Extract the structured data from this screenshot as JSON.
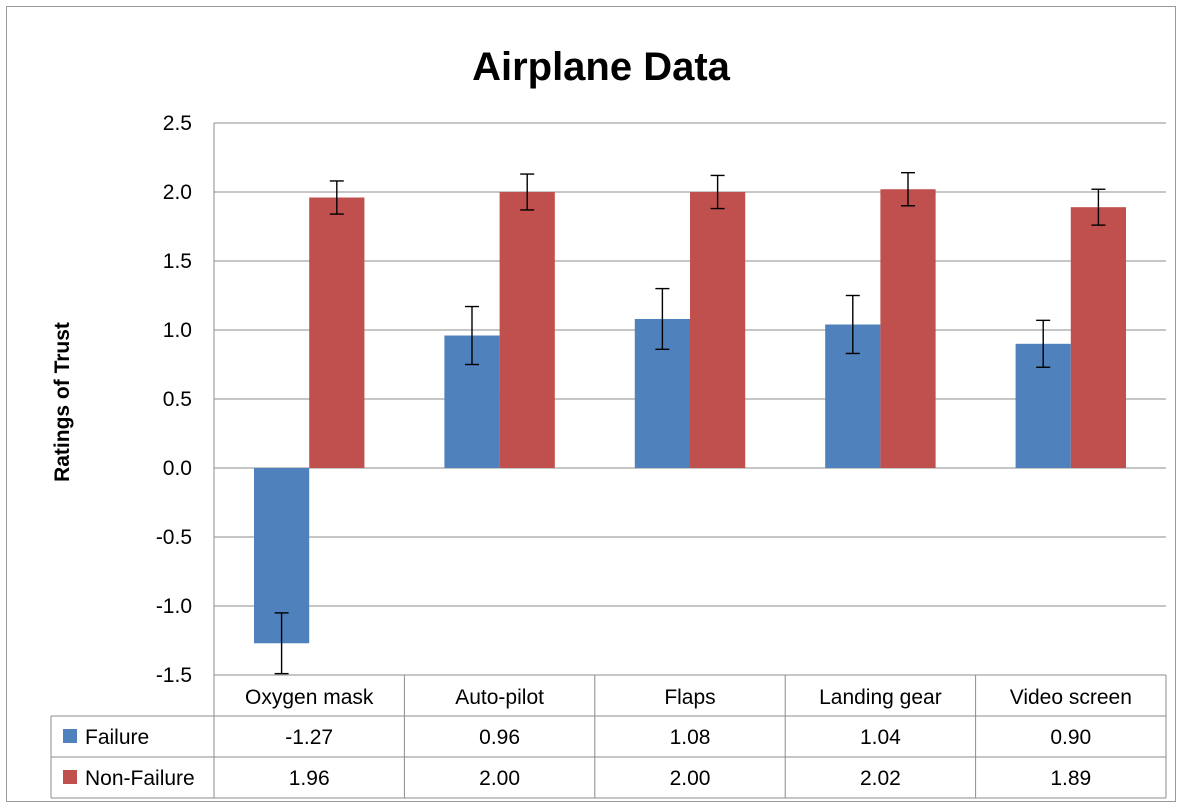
{
  "chart_data": {
    "type": "bar",
    "title": "Airplane Data",
    "xlabel": "",
    "ylabel": "Ratings of Trust",
    "ylim": [
      -1.5,
      2.5
    ],
    "yticks": [
      2.5,
      2.0,
      1.5,
      1.0,
      0.5,
      0.0,
      -0.5,
      -1.0,
      -1.5
    ],
    "ytick_labels": [
      "2.5",
      "2.0",
      "1.5",
      "1.0",
      "0.5",
      "0.0",
      "-0.5",
      "-1.0",
      "-1.5"
    ],
    "grid": true,
    "legend": "data-table",
    "categories": [
      "Oxygen mask",
      "Auto-pilot",
      "Flaps",
      "Landing gear",
      "Video screen"
    ],
    "series": [
      {
        "name": "Failure",
        "color": "#4f81bd",
        "values": [
          -1.27,
          0.96,
          1.08,
          1.04,
          0.9
        ],
        "value_labels": [
          "-1.27",
          "0.96",
          "1.08",
          "1.04",
          "0.90"
        ],
        "error": [
          0.22,
          0.21,
          0.22,
          0.21,
          0.17
        ]
      },
      {
        "name": "Non-Failure",
        "color": "#c0504d",
        "values": [
          1.96,
          2.0,
          2.0,
          2.02,
          1.89
        ],
        "value_labels": [
          "1.96",
          "2.00",
          "2.00",
          "2.02",
          "1.89"
        ],
        "error": [
          0.12,
          0.13,
          0.12,
          0.12,
          0.13
        ]
      }
    ]
  }
}
